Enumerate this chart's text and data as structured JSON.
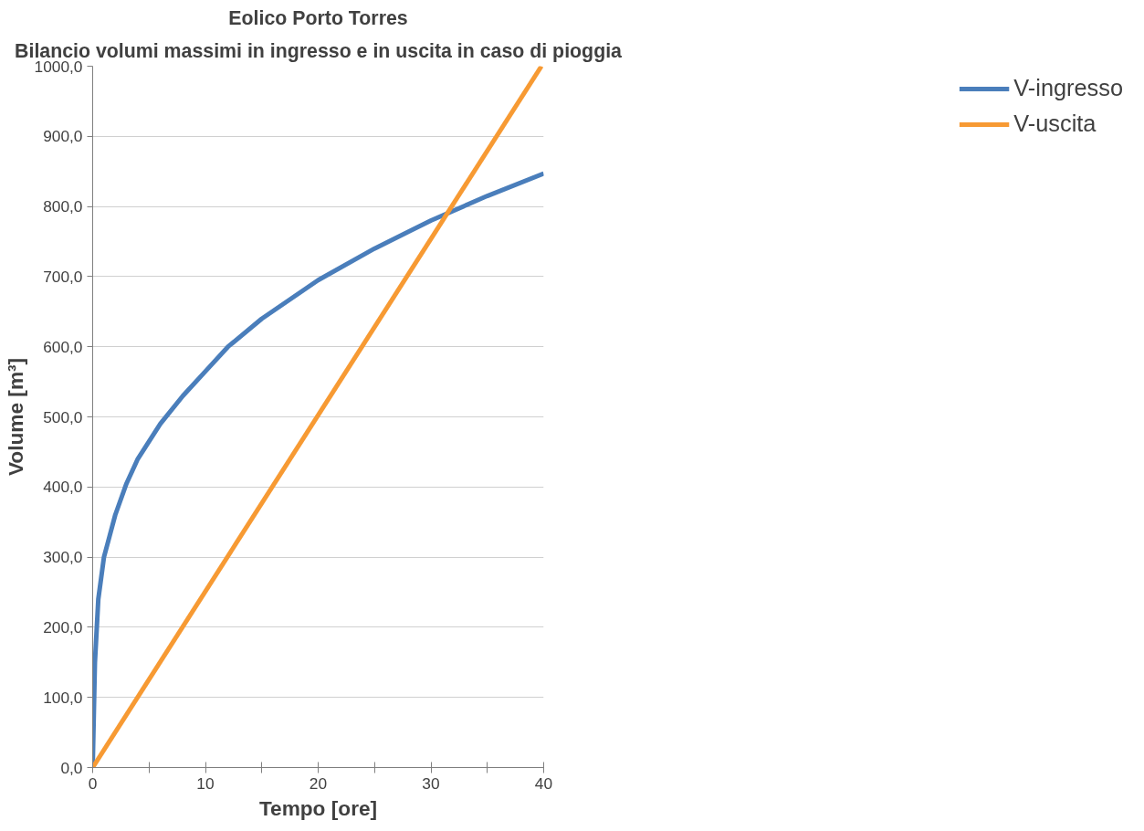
{
  "chart_data": {
    "type": "line",
    "title": "Eolico Porto Torres",
    "subtitle": "Bilancio volumi massimi in ingresso e in uscita in caso di pioggia",
    "xlabel": "Tempo [ore]",
    "ylabel": "Volume [m³]",
    "xlim": [
      0,
      40
    ],
    "ylim": [
      0,
      1000
    ],
    "xticks": [
      0,
      {
        "value": 5,
        "label": null
      },
      10,
      {
        "value": 15,
        "label": null
      },
      20,
      {
        "value": 25,
        "label": null
      },
      30,
      {
        "value": 35,
        "label": null
      },
      40
    ],
    "yticks": [
      {
        "value": 0,
        "label": "0,0"
      },
      {
        "value": 100,
        "label": "100,0"
      },
      {
        "value": 200,
        "label": "200,0"
      },
      {
        "value": 300,
        "label": "300,0"
      },
      {
        "value": 400,
        "label": "400,0"
      },
      {
        "value": 500,
        "label": "500,0"
      },
      {
        "value": 600,
        "label": "600,0"
      },
      {
        "value": 700,
        "label": "700,0"
      },
      {
        "value": 800,
        "label": "800,0"
      },
      {
        "value": 900,
        "label": "900,0"
      },
      {
        "value": 1000,
        "label": "1000,0"
      }
    ],
    "grid": "y",
    "legend": "right",
    "line_style": "solid",
    "series": [
      {
        "name": "V-ingresso",
        "color": "#4a7ebb",
        "x": [
          0,
          0.2,
          0.5,
          1,
          1.5,
          2,
          3,
          4,
          5,
          6,
          8,
          10,
          12,
          15,
          20,
          25,
          30,
          35,
          40
        ],
        "values": [
          0,
          150,
          240,
          300,
          330,
          360,
          405,
          440,
          465,
          490,
          530,
          565,
          600,
          640,
          695,
          740,
          780,
          815,
          847
        ]
      },
      {
        "name": "V-uscita",
        "color": "#f79a33",
        "x": [
          0,
          39.8
        ],
        "values": [
          0,
          1000
        ]
      }
    ]
  }
}
